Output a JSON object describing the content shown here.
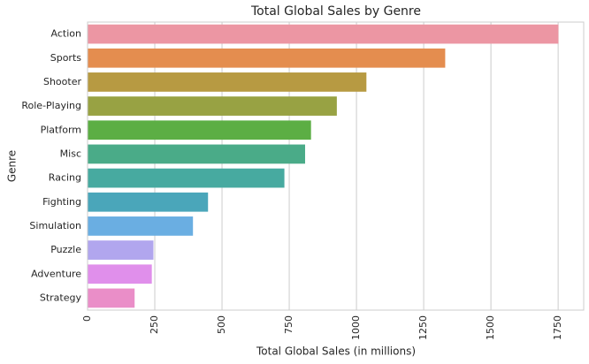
{
  "chart_data": {
    "type": "barh",
    "title": "Total Global Sales by Genre",
    "xlabel": "Total Global Sales (in millions)",
    "ylabel": "Genre",
    "categories": [
      "Action",
      "Sports",
      "Shooter",
      "Role-Playing",
      "Platform",
      "Misc",
      "Racing",
      "Fighting",
      "Simulation",
      "Puzzle",
      "Adventure",
      "Strategy"
    ],
    "values": [
      1751,
      1330,
      1037,
      927,
      831,
      809,
      732,
      448,
      392,
      245,
      239,
      175
    ],
    "colors": [
      "#ec96a3",
      "#e48d4f",
      "#b79a42",
      "#98a243",
      "#5cae44",
      "#4aab88",
      "#47aaa0",
      "#4aa6ba",
      "#6aaee2",
      "#b1a6ee",
      "#e08feb",
      "#ea8ec8"
    ],
    "xlim": [
      0,
      1845
    ],
    "xticks": [
      0,
      250,
      500,
      750,
      1000,
      1250,
      1500,
      1750
    ],
    "grid": true
  }
}
